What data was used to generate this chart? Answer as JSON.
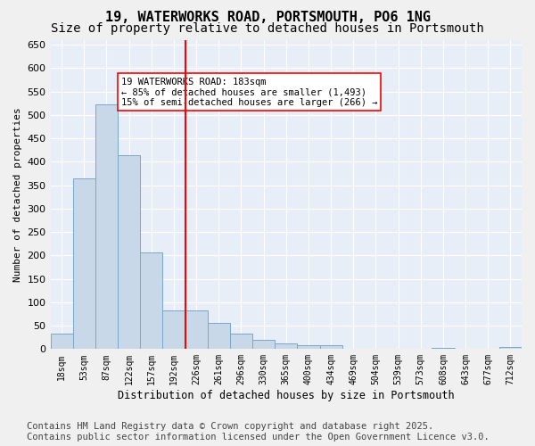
{
  "title": "19, WATERWORKS ROAD, PORTSMOUTH, PO6 1NG",
  "subtitle": "Size of property relative to detached houses in Portsmouth",
  "xlabel": "Distribution of detached houses by size in Portsmouth",
  "ylabel": "Number of detached properties",
  "categories": [
    "18sqm",
    "53sqm",
    "87sqm",
    "122sqm",
    "157sqm",
    "192sqm",
    "226sqm",
    "261sqm",
    "296sqm",
    "330sqm",
    "365sqm",
    "400sqm",
    "434sqm",
    "469sqm",
    "504sqm",
    "539sqm",
    "573sqm",
    "608sqm",
    "643sqm",
    "677sqm",
    "712sqm"
  ],
  "values": [
    33,
    365,
    522,
    415,
    207,
    82,
    82,
    55,
    33,
    20,
    12,
    8,
    8,
    0,
    0,
    0,
    0,
    2,
    0,
    0,
    4
  ],
  "bar_color": "#c8d8e8",
  "bar_edge_color": "#7aa8c8",
  "vline_x": 5.5,
  "vline_color": "red",
  "annotation_text": "19 WATERWORKS ROAD: 183sqm\n← 85% of detached houses are smaller (1,493)\n15% of semi-detached houses are larger (266) →",
  "annotation_box_color": "white",
  "annotation_box_edge": "red",
  "ylim": [
    0,
    660
  ],
  "yticks": [
    0,
    50,
    100,
    150,
    200,
    250,
    300,
    350,
    400,
    450,
    500,
    550,
    600,
    650
  ],
  "background_color": "#e8eef8",
  "footer_line1": "Contains HM Land Registry data © Crown copyright and database right 2025.",
  "footer_line2": "Contains public sector information licensed under the Open Government Licence v3.0.",
  "title_fontsize": 11,
  "subtitle_fontsize": 10,
  "footer_fontsize": 7.5
}
